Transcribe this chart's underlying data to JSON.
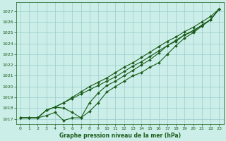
{
  "xlabel": "Graphe pression niveau de la mer (hPa)",
  "background_color": "#cceee8",
  "grid_color": "#99cccc",
  "line_color": "#1a5c1a",
  "text_color": "#1a5c1a",
  "xlim": [
    -0.5,
    23.5
  ],
  "ylim": [
    1016.5,
    1027.8
  ],
  "yticks": [
    1017,
    1018,
    1019,
    1020,
    1021,
    1022,
    1023,
    1024,
    1025,
    1026,
    1027
  ],
  "xticks": [
    0,
    1,
    2,
    3,
    4,
    5,
    6,
    7,
    8,
    9,
    10,
    11,
    12,
    13,
    14,
    15,
    16,
    17,
    18,
    19,
    20,
    21,
    22,
    23
  ],
  "series1": [
    1017.1,
    1017.1,
    1017.1,
    1017.3,
    1017.6,
    1016.85,
    1017.1,
    1017.1,
    1017.7,
    1018.5,
    1019.5,
    1020.0,
    1020.5,
    1021.0,
    1021.3,
    1021.8,
    1022.2,
    1023.0,
    1023.8,
    1024.5,
    1025.0,
    1025.6,
    1026.2,
    1027.2
  ],
  "series2": [
    1017.1,
    1017.1,
    1017.1,
    1017.8,
    1018.1,
    1018.0,
    1017.6,
    1017.1,
    1018.5,
    1019.4,
    1020.1,
    1020.5,
    1021.0,
    1021.5,
    1022.0,
    1022.5,
    1023.1,
    1023.8,
    1024.2,
    1024.8,
    1025.1,
    1025.7,
    1026.2,
    1027.2
  ],
  "series3": [
    1017.1,
    1017.1,
    1017.1,
    1017.8,
    1018.1,
    1018.5,
    1018.9,
    1019.3,
    1019.7,
    1020.1,
    1020.5,
    1020.9,
    1021.4,
    1021.9,
    1022.3,
    1022.8,
    1023.3,
    1023.8,
    1024.3,
    1024.8,
    1025.2,
    1025.7,
    1026.2,
    1027.2
  ],
  "series4": [
    1017.1,
    1017.1,
    1017.1,
    1017.8,
    1018.1,
    1018.5,
    1019.0,
    1019.5,
    1020.0,
    1020.4,
    1020.8,
    1021.3,
    1021.8,
    1022.2,
    1022.7,
    1023.2,
    1023.7,
    1024.2,
    1024.6,
    1025.1,
    1025.5,
    1026.0,
    1026.5,
    1027.2
  ],
  "markersize": 2.0,
  "linewidth": 0.8,
  "xlabel_fontsize": 5.5,
  "tick_fontsize": 4.5
}
